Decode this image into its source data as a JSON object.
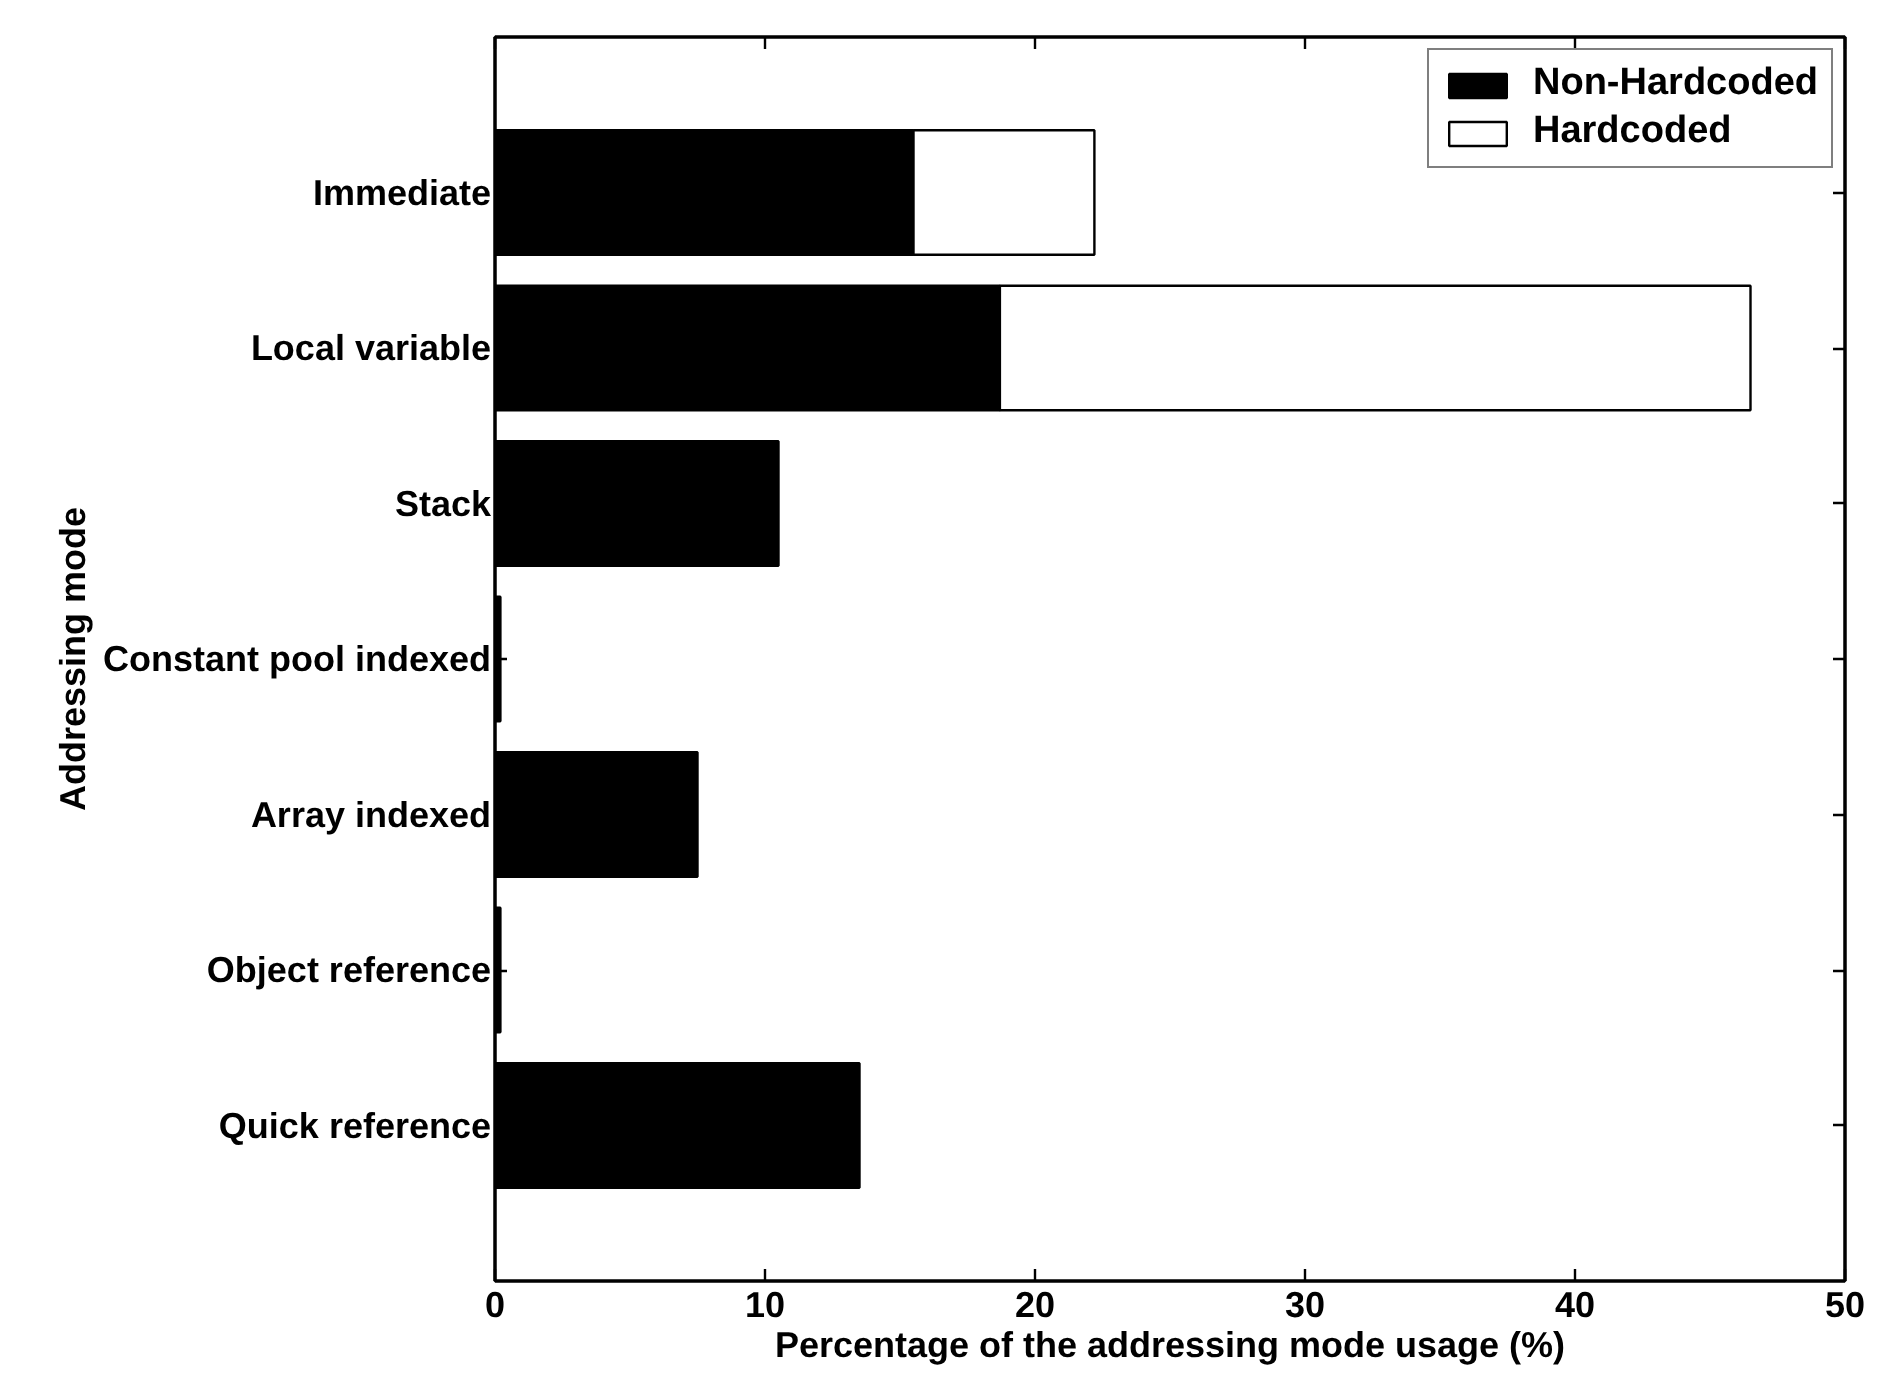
{
  "chart_data": {
    "type": "bar",
    "orientation": "horizontal",
    "stacked": true,
    "categories": [
      "Immediate",
      "Local variable",
      "Stack",
      "Constant pool indexed",
      "Array indexed",
      "Object reference",
      "Quick reference"
    ],
    "series": [
      {
        "name": "Non-Hardcoded",
        "color": "#000000",
        "values": [
          15.5,
          18.7,
          10.5,
          0.2,
          7.5,
          0.2,
          13.5
        ]
      },
      {
        "name": "Hardcoded",
        "color": "#ffffff",
        "values": [
          6.7,
          27.8,
          null,
          null,
          null,
          null,
          null
        ]
      }
    ],
    "xlim": [
      0,
      50
    ],
    "xticks": [
      0,
      10,
      20,
      30,
      40,
      50
    ],
    "xlabel": "Percentage of the addressing mode usage (%)",
    "ylabel": "Addressing mode",
    "legend": "top right"
  }
}
